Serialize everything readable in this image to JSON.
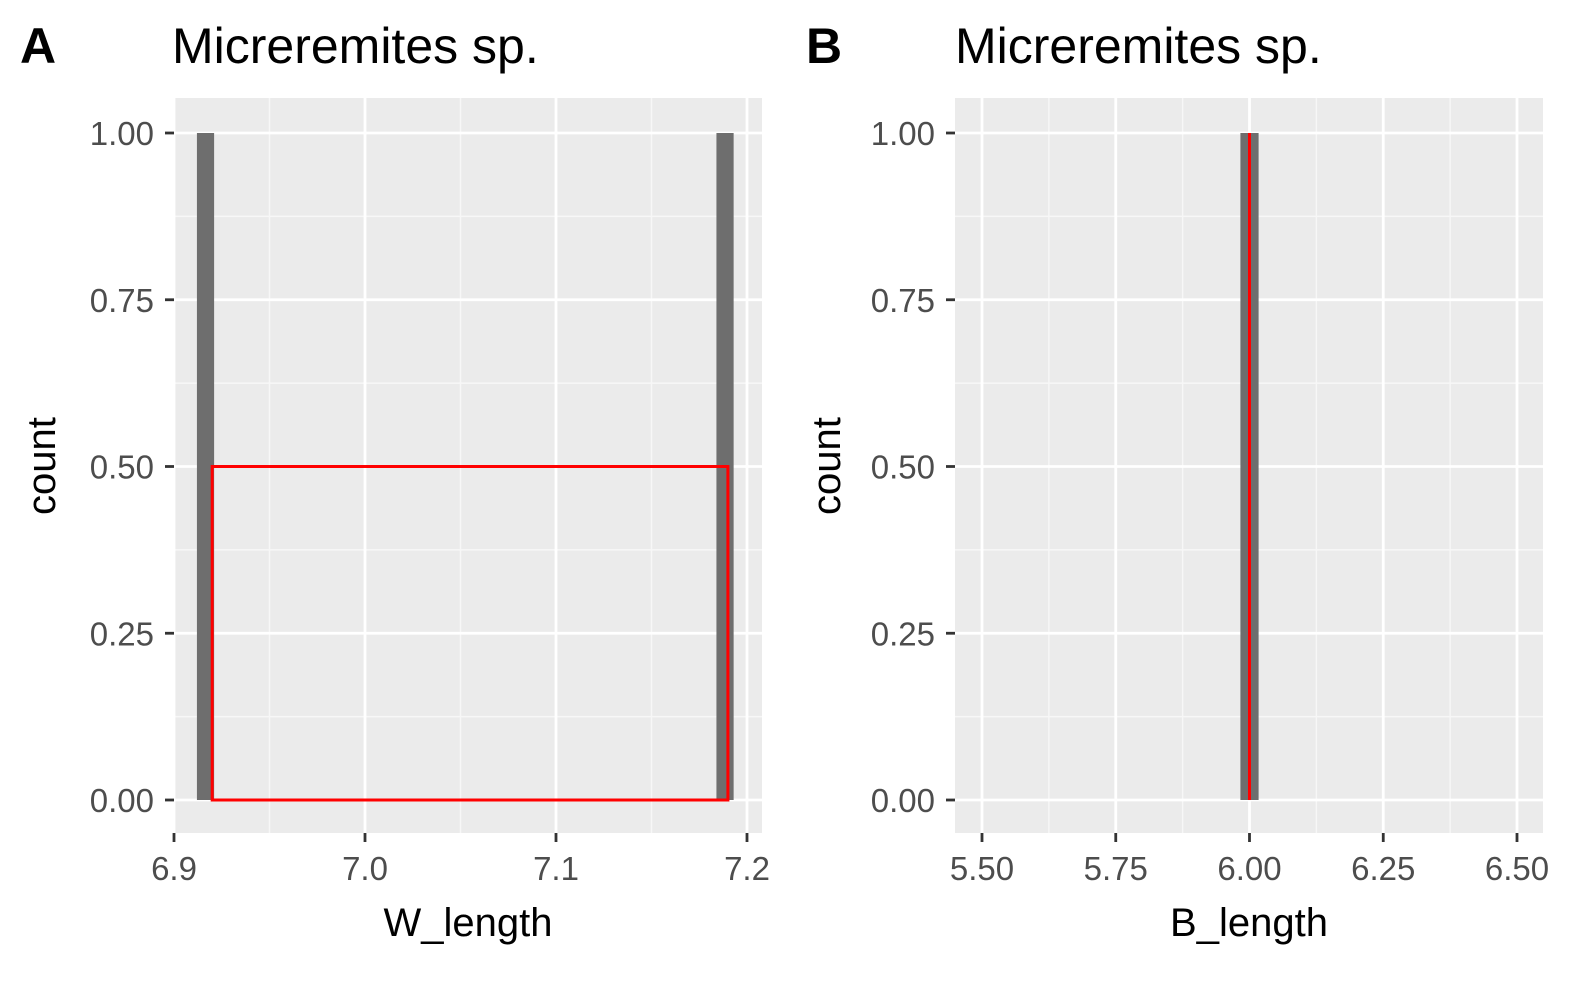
{
  "figure": {
    "colors": {
      "panel_bg": "#ebebeb",
      "grid_major": "#ffffff",
      "grid_minor": "#f7f7f7",
      "bar_fill": "#6e6e6e",
      "overlay": "#ff0000",
      "tick": "#333333"
    }
  },
  "chart_data": [
    {
      "panel": "A",
      "type": "bar",
      "title": "Micreremites sp.",
      "xlabel": "W_length",
      "ylabel": "count",
      "xlim": [
        6.9,
        7.2
      ],
      "ylim": [
        0,
        1
      ],
      "x_ticks": [
        6.9,
        7.0,
        7.1,
        7.2
      ],
      "x_tick_labels": [
        "6.9",
        "7.0",
        "7.1",
        "7.2"
      ],
      "y_ticks": [
        0,
        0.25,
        0.5,
        0.75,
        1
      ],
      "y_tick_labels": [
        "0.00",
        "0.25",
        "0.50",
        "0.75",
        "1.00"
      ],
      "grid": true,
      "bars": [
        {
          "x_min": 6.912,
          "x_max": 6.921,
          "count": 1
        },
        {
          "x_min": 7.184,
          "x_max": 7.193,
          "count": 1
        }
      ],
      "overlay": {
        "type": "rect",
        "x_min": 6.92,
        "x_max": 7.19,
        "y_min": 0,
        "y_max": 0.5,
        "color": "#ff0000"
      }
    },
    {
      "panel": "B",
      "type": "bar",
      "title": "Micreremites sp.",
      "xlabel": "B_length",
      "ylabel": "count",
      "xlim": [
        5.5,
        6.5
      ],
      "ylim": [
        0,
        1
      ],
      "x_ticks": [
        5.5,
        5.75,
        6.0,
        6.25,
        6.5
      ],
      "x_tick_labels": [
        "5.50",
        "5.75",
        "6.00",
        "6.25",
        "6.50"
      ],
      "y_ticks": [
        0,
        0.25,
        0.5,
        0.75,
        1
      ],
      "y_tick_labels": [
        "0.00",
        "0.25",
        "0.50",
        "0.75",
        "1.00"
      ],
      "grid": true,
      "bars": [
        {
          "x_min": 5.983,
          "x_max": 6.017,
          "count": 1
        }
      ],
      "overlay": {
        "type": "vline",
        "x": 6.0,
        "y_min": 0,
        "y_max": 1,
        "color": "#ff0000"
      }
    }
  ]
}
